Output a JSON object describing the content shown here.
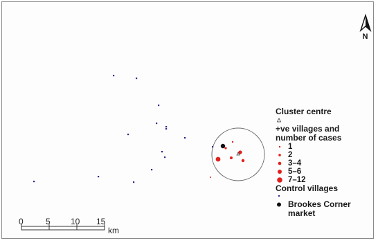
{
  "map": {
    "north_label": "N",
    "cluster_circle_present": true,
    "control_village_color": "#2b2b8c",
    "case_village_color": "#e0201c",
    "market_color": "#111111",
    "cluster_ring_color": "#6b6b6b"
  },
  "legend": {
    "cluster_centre": "Cluster centre",
    "positive_villages_line1": "+ve villages and",
    "positive_villages_line2": "number of cases",
    "case_classes": [
      {
        "label": "1",
        "radius": 1.2
      },
      {
        "label": "2",
        "radius": 1.8
      },
      {
        "label": "3–4",
        "radius": 2.3
      },
      {
        "label": "5–6",
        "radius": 3.0
      },
      {
        "label": "7–12",
        "radius": 3.8
      }
    ],
    "control_villages": "Control villages",
    "market_line1": "Brookes Corner",
    "market_line2": "market"
  },
  "scale": {
    "ticks": [
      "0",
      "5",
      "10",
      "15"
    ],
    "unit": "km"
  }
}
